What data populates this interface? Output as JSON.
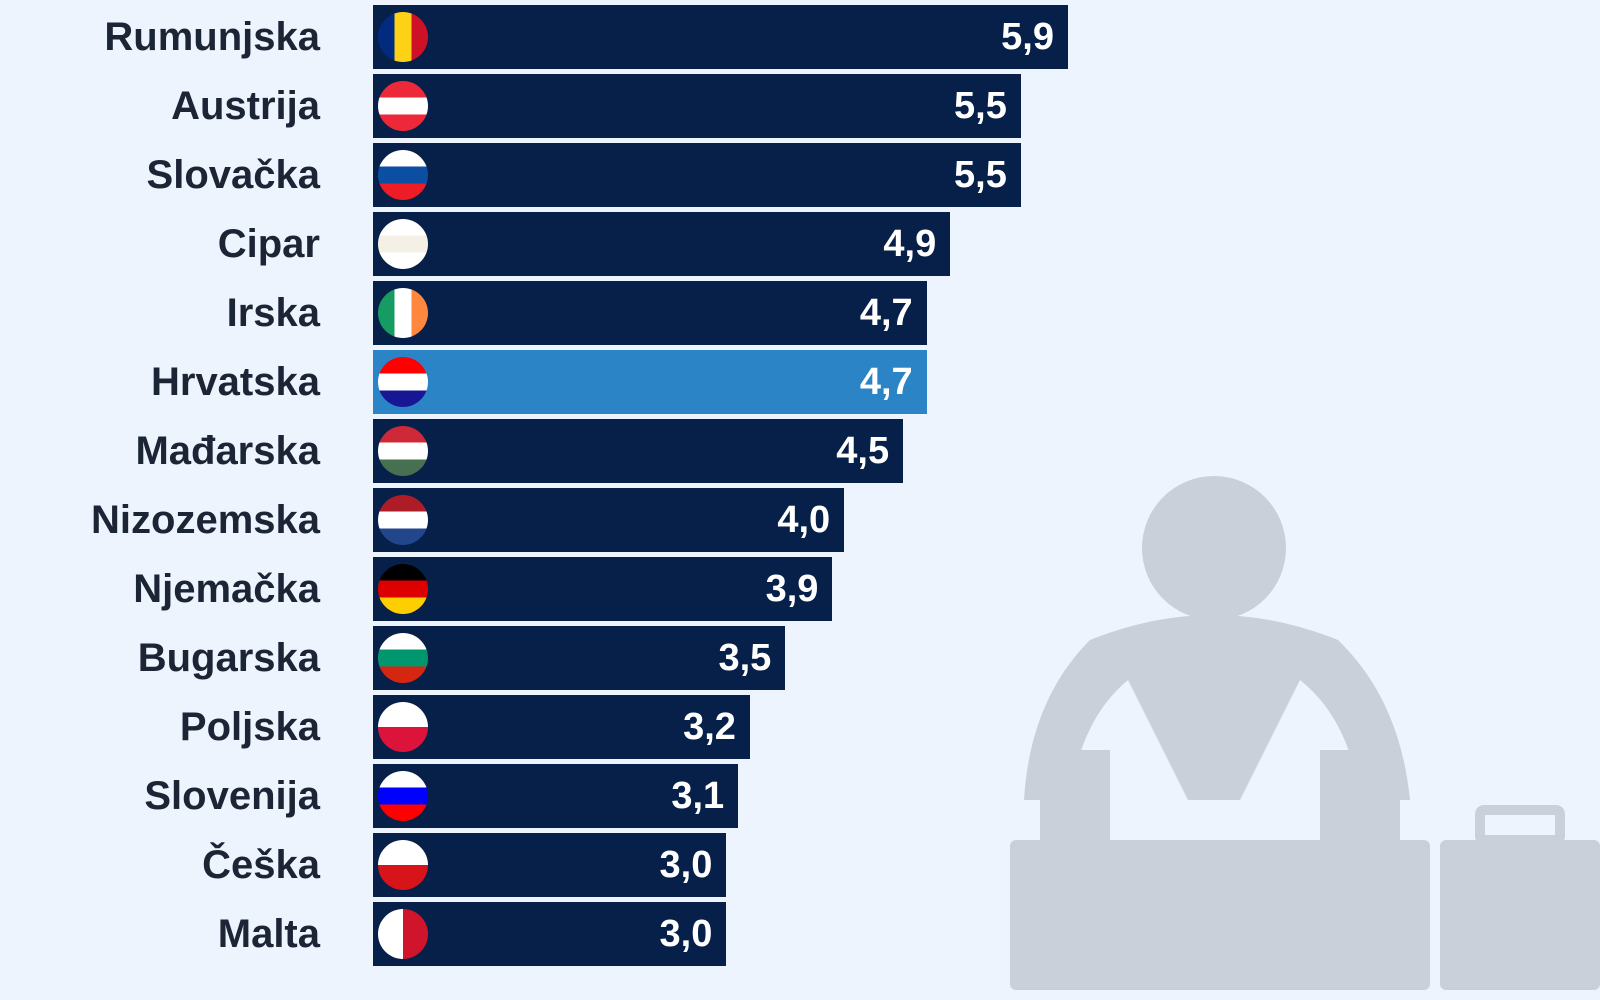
{
  "chart_data": {
    "type": "bar",
    "orientation": "horizontal",
    "title": "",
    "xlabel": "",
    "ylabel": "",
    "xlim": [
      0,
      5.9
    ],
    "highlight": "Hrvatska",
    "colors": {
      "bar": "#06204a",
      "highlight": "#2a84c6",
      "background": "#eef4fd"
    },
    "categories": [
      "Rumunjska",
      "Austrija",
      "Slovačka",
      "Cipar",
      "Irska",
      "Hrvatska",
      "Mađarska",
      "Nizozemska",
      "Njemačka",
      "Bugarska",
      "Poljska",
      "Slovenija",
      "Češka",
      "Malta"
    ],
    "values": [
      5.9,
      5.5,
      5.5,
      4.9,
      4.7,
      4.7,
      4.5,
      4.0,
      3.9,
      3.5,
      3.2,
      3.1,
      3.0,
      3.0
    ],
    "value_labels": [
      "5,9",
      "5,5",
      "5,5",
      "4,9",
      "4,7",
      "4,7",
      "4,5",
      "4,0",
      "3,9",
      "3,5",
      "3,2",
      "3,1",
      "3,0",
      "3,0"
    ],
    "flags": [
      {
        "dir": "v",
        "colors": [
          "#002b7f",
          "#fcd116",
          "#ce1126"
        ]
      },
      {
        "dir": "h",
        "colors": [
          "#ed2939",
          "#ffffff",
          "#ed2939"
        ]
      },
      {
        "dir": "h",
        "colors": [
          "#ffffff",
          "#0b4ea2",
          "#ee1c25"
        ]
      },
      {
        "dir": "h",
        "colors": [
          "#ffffff",
          "#f5f0e6",
          "#ffffff"
        ]
      },
      {
        "dir": "v",
        "colors": [
          "#169b62",
          "#ffffff",
          "#ff883e"
        ]
      },
      {
        "dir": "h",
        "colors": [
          "#ff0000",
          "#ffffff",
          "#171796"
        ]
      },
      {
        "dir": "h",
        "colors": [
          "#ce2939",
          "#ffffff",
          "#477050"
        ]
      },
      {
        "dir": "h",
        "colors": [
          "#ae1c28",
          "#ffffff",
          "#21468b"
        ]
      },
      {
        "dir": "h",
        "colors": [
          "#000000",
          "#dd0000",
          "#ffce00"
        ]
      },
      {
        "dir": "h",
        "colors": [
          "#ffffff",
          "#00966e",
          "#d62612"
        ]
      },
      {
        "dir": "h",
        "colors": [
          "#ffffff",
          "#dc143c"
        ]
      },
      {
        "dir": "h",
        "colors": [
          "#ffffff",
          "#0000ff",
          "#ff0000"
        ]
      },
      {
        "dir": "h",
        "colors": [
          "#ffffff",
          "#d7141a"
        ]
      },
      {
        "dir": "v",
        "colors": [
          "#ffffff",
          "#cf142b"
        ]
      }
    ]
  }
}
